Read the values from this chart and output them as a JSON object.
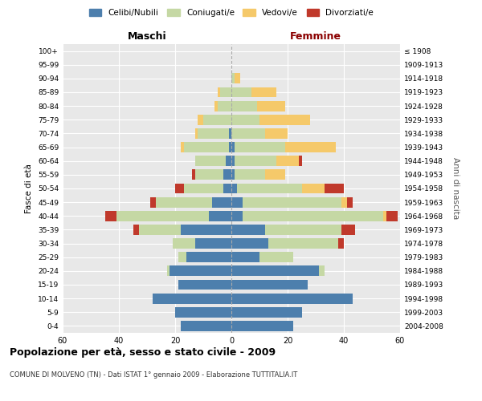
{
  "age_groups": [
    "0-4",
    "5-9",
    "10-14",
    "15-19",
    "20-24",
    "25-29",
    "30-34",
    "35-39",
    "40-44",
    "45-49",
    "50-54",
    "55-59",
    "60-64",
    "65-69",
    "70-74",
    "75-79",
    "80-84",
    "85-89",
    "90-94",
    "95-99",
    "100+"
  ],
  "birth_years": [
    "2004-2008",
    "1999-2003",
    "1994-1998",
    "1989-1993",
    "1984-1988",
    "1979-1983",
    "1974-1978",
    "1969-1973",
    "1964-1968",
    "1959-1963",
    "1954-1958",
    "1949-1953",
    "1944-1948",
    "1939-1943",
    "1934-1938",
    "1929-1933",
    "1924-1928",
    "1919-1923",
    "1914-1918",
    "1909-1913",
    "≤ 1908"
  ],
  "maschi": {
    "celibi": [
      18,
      20,
      28,
      19,
      22,
      16,
      13,
      18,
      8,
      7,
      3,
      3,
      2,
      1,
      1,
      0,
      0,
      0,
      0,
      0,
      0
    ],
    "coniugati": [
      0,
      0,
      0,
      0,
      1,
      3,
      8,
      15,
      33,
      20,
      14,
      10,
      11,
      16,
      11,
      10,
      5,
      4,
      0,
      0,
      0
    ],
    "vedovi": [
      0,
      0,
      0,
      0,
      0,
      0,
      0,
      0,
      0,
      0,
      0,
      0,
      0,
      1,
      1,
      2,
      1,
      1,
      0,
      0,
      0
    ],
    "divorziati": [
      0,
      0,
      0,
      0,
      0,
      0,
      0,
      2,
      4,
      2,
      3,
      1,
      0,
      0,
      0,
      0,
      0,
      0,
      0,
      0,
      0
    ]
  },
  "femmine": {
    "nubili": [
      22,
      25,
      43,
      27,
      31,
      10,
      13,
      12,
      4,
      4,
      2,
      1,
      1,
      1,
      0,
      0,
      0,
      0,
      0,
      0,
      0
    ],
    "coniugate": [
      0,
      0,
      0,
      0,
      2,
      12,
      25,
      27,
      50,
      35,
      23,
      11,
      15,
      18,
      12,
      10,
      9,
      7,
      1,
      0,
      0
    ],
    "vedove": [
      0,
      0,
      0,
      0,
      0,
      0,
      0,
      0,
      1,
      2,
      8,
      7,
      8,
      18,
      8,
      18,
      10,
      9,
      2,
      0,
      0
    ],
    "divorziate": [
      0,
      0,
      0,
      0,
      0,
      0,
      2,
      5,
      4,
      2,
      7,
      0,
      1,
      0,
      0,
      0,
      0,
      0,
      0,
      0,
      0
    ]
  },
  "colors": {
    "celibi": "#4d7fad",
    "coniugati": "#c5d8a4",
    "vedovi": "#f5c96a",
    "divorziati": "#c0392b"
  },
  "xlim": 60,
  "title": "Popolazione per età, sesso e stato civile - 2009",
  "subtitle": "COMUNE DI MOLVENO (TN) - Dati ISTAT 1° gennaio 2009 - Elaborazione TUTTITALIA.IT",
  "ylabel_left": "Fasce di età",
  "ylabel_right": "Anni di nascita",
  "xlabel_maschi": "Maschi",
  "xlabel_femmine": "Femmine",
  "legend_labels": [
    "Celibi/Nubili",
    "Coniugati/e",
    "Vedovi/e",
    "Divorziati/e"
  ],
  "background_color": "#ffffff",
  "plot_bg_color": "#e8e8e8",
  "grid_color": "#ffffff"
}
